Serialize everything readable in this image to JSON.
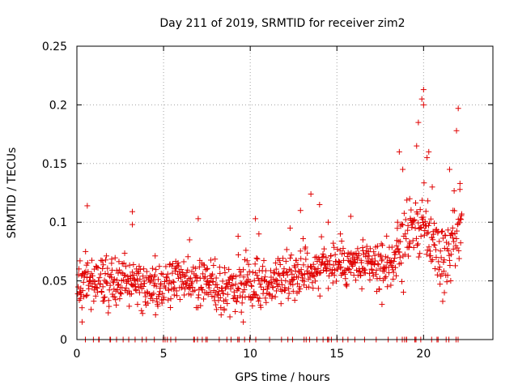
{
  "chart_data": {
    "type": "scatter",
    "title": "Day 211 of 2019, SRMTID for receiver zim2",
    "xlabel": "GPS time / hours",
    "ylabel": "SRMTID / TECUs",
    "xlim": [
      0,
      24
    ],
    "ylim": [
      0,
      0.25
    ],
    "xticks": [
      0,
      5,
      10,
      15,
      20
    ],
    "xtick_labels": [
      "0",
      "5",
      "10",
      "15",
      "20"
    ],
    "yticks": [
      0,
      0.05,
      0.1,
      0.15,
      0.2,
      0.25
    ],
    "ytick_labels": [
      "0",
      "0.05",
      "0.1",
      "0.15",
      "0.2",
      "0.25"
    ],
    "grid": true,
    "marker": "+",
    "series": [
      {
        "name": "SRMTID",
        "color": "#e00000",
        "trend_x": [
          0,
          2,
          4,
          6,
          8,
          10,
          11,
          12,
          13,
          14,
          15,
          16,
          17,
          18,
          18.7,
          19.3,
          19.8,
          20.3,
          21,
          21.5,
          22
        ],
        "trend_y": [
          0.048,
          0.05,
          0.046,
          0.05,
          0.047,
          0.045,
          0.048,
          0.055,
          0.06,
          0.062,
          0.065,
          0.063,
          0.062,
          0.062,
          0.08,
          0.095,
          0.1,
          0.09,
          0.07,
          0.075,
          0.1
        ],
        "points": [
          [
            0.2,
            0.035
          ],
          [
            0.3,
            0.015
          ],
          [
            0.5,
            0.075
          ],
          [
            0.6,
            0.114
          ],
          [
            1.0,
            0.06
          ],
          [
            1.5,
            0.045
          ],
          [
            2.0,
            0.065
          ],
          [
            2.5,
            0.04
          ],
          [
            3.2,
            0.109
          ],
          [
            3.2,
            0.098
          ],
          [
            3.5,
            0.03
          ],
          [
            4.5,
            0.055
          ],
          [
            5.3,
            0.042
          ],
          [
            6.5,
            0.085
          ],
          [
            7.0,
            0.103
          ],
          [
            7.5,
            0.06
          ],
          [
            8.0,
            0.04
          ],
          [
            8.5,
            0.025
          ],
          [
            9.3,
            0.088
          ],
          [
            9.6,
            0.015
          ],
          [
            10.3,
            0.103
          ],
          [
            10.5,
            0.09
          ],
          [
            11.5,
            0.06
          ],
          [
            12.3,
            0.095
          ],
          [
            12.9,
            0.11
          ],
          [
            13.5,
            0.124
          ],
          [
            14.0,
            0.115
          ],
          [
            14.5,
            0.1
          ],
          [
            15.2,
            0.09
          ],
          [
            15.8,
            0.105
          ],
          [
            16.5,
            0.085
          ],
          [
            17.0,
            0.06
          ],
          [
            17.6,
            0.03
          ],
          [
            18.5,
            0.1
          ],
          [
            18.6,
            0.16
          ],
          [
            18.8,
            0.145
          ],
          [
            19.2,
            0.12
          ],
          [
            19.6,
            0.165
          ],
          [
            19.7,
            0.185
          ],
          [
            19.9,
            0.205
          ],
          [
            20.0,
            0.213
          ],
          [
            20.0,
            0.2
          ],
          [
            20.2,
            0.155
          ],
          [
            20.3,
            0.16
          ],
          [
            20.5,
            0.13
          ],
          [
            21.2,
            0.04
          ],
          [
            21.5,
            0.145
          ],
          [
            21.7,
            0.11
          ],
          [
            21.9,
            0.178
          ],
          [
            22.0,
            0.197
          ],
          [
            22.1,
            0.133
          ],
          [
            22.2,
            0.107
          ]
        ]
      }
    ]
  }
}
